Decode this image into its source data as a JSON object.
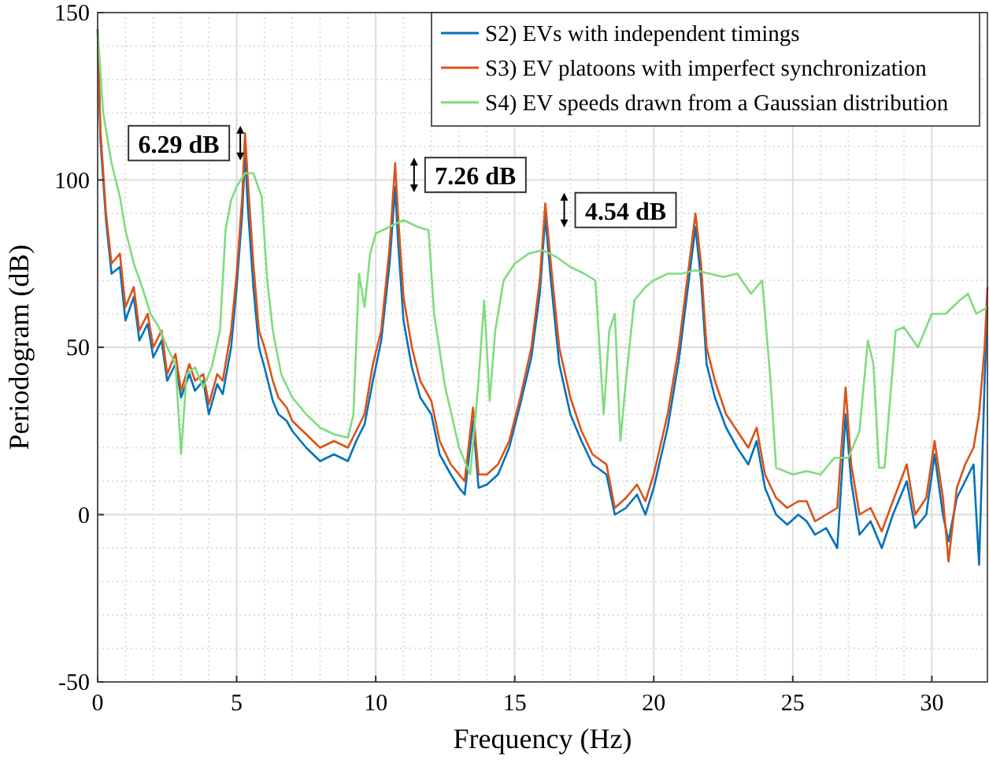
{
  "chart_data": {
    "type": "line",
    "xlabel": "Frequency (Hz)",
    "ylabel": "Periodogram (dB)",
    "xlim": [
      0,
      32
    ],
    "xticks": [
      0,
      5,
      10,
      15,
      20,
      25,
      30
    ],
    "ylim": [
      -50,
      150
    ],
    "yticks": [
      -50,
      0,
      50,
      100,
      150
    ],
    "grid": true,
    "legend": "top right",
    "line_style": "solid",
    "marker": "none",
    "x": [
      0,
      0.1,
      0.3,
      0.5,
      0.8,
      1.0,
      1.3,
      1.5,
      1.8,
      2.0,
      2.3,
      2.5,
      2.8,
      3.0,
      3.3,
      3.5,
      3.8,
      4.0,
      4.3,
      4.5,
      4.8,
      5.0,
      5.2,
      5.3,
      5.4,
      5.6,
      5.8,
      6.0,
      6.3,
      6.5,
      6.8,
      7.0,
      7.5,
      8.0,
      8.5,
      9.0,
      9.3,
      9.6,
      9.9,
      10.2,
      10.5,
      10.7,
      10.8,
      11.0,
      11.3,
      11.6,
      12.0,
      12.3,
      12.7,
      13.0,
      13.2,
      13.5,
      13.7,
      14.0,
      14.4,
      14.8,
      15.2,
      15.6,
      15.9,
      16.1,
      16.3,
      16.6,
      17.0,
      17.4,
      17.8,
      18.3,
      18.6,
      19.0,
      19.4,
      19.7,
      20.0,
      20.5,
      20.9,
      21.2,
      21.5,
      21.7,
      21.9,
      22.2,
      22.6,
      23.0,
      23.4,
      23.7,
      24.0,
      24.4,
      24.8,
      25.2,
      25.5,
      25.8,
      26.2,
      26.6,
      26.9,
      27.1,
      27.4,
      27.8,
      28.2,
      28.6,
      29.1,
      29.4,
      29.8,
      30.1,
      30.4,
      30.6,
      30.9,
      31.2,
      31.5,
      31.7,
      31.9,
      32.0
    ],
    "series": [
      {
        "name": "S2) EVs with independent timings",
        "color": "#0072bd",
        "values": [
          145,
          112,
          88,
          72,
          74,
          58,
          65,
          52,
          57,
          47,
          52,
          40,
          45,
          35,
          42,
          37,
          40,
          30,
          39,
          36,
          50,
          68,
          90,
          108,
          92,
          68,
          50,
          44,
          34,
          30,
          28,
          25,
          20,
          16,
          18,
          16,
          22,
          27,
          40,
          52,
          75,
          98,
          82,
          58,
          44,
          35,
          30,
          18,
          12,
          8,
          6,
          28,
          8,
          9,
          12,
          20,
          33,
          47,
          66,
          89,
          70,
          45,
          30,
          22,
          15,
          12,
          0,
          2,
          6,
          0,
          8,
          26,
          46,
          66,
          86,
          70,
          45,
          35,
          26,
          20,
          15,
          22,
          8,
          0,
          -3,
          0,
          -2,
          -6,
          -4,
          -10,
          30,
          10,
          -6,
          -2,
          -10,
          0,
          10,
          -4,
          0,
          18,
          0,
          -8,
          5,
          10,
          15,
          -15,
          40,
          62
        ]
      },
      {
        "name": "S3) EV platoons with imperfect synchronization",
        "color": "#d95319",
        "values": [
          145,
          115,
          90,
          75,
          78,
          62,
          68,
          55,
          60,
          50,
          55,
          42,
          48,
          37,
          45,
          40,
          42,
          33,
          42,
          40,
          55,
          72,
          95,
          114,
          100,
          75,
          55,
          50,
          40,
          35,
          32,
          28,
          24,
          20,
          22,
          20,
          25,
          30,
          45,
          55,
          80,
          105,
          90,
          65,
          50,
          40,
          34,
          22,
          15,
          12,
          10,
          32,
          12,
          12,
          15,
          22,
          35,
          50,
          70,
          93,
          75,
          50,
          35,
          25,
          18,
          15,
          2,
          5,
          9,
          4,
          12,
          30,
          50,
          70,
          90,
          75,
          50,
          40,
          30,
          25,
          20,
          26,
          12,
          5,
          2,
          4,
          4,
          -2,
          0,
          2,
          38,
          15,
          0,
          2,
          -5,
          4,
          15,
          0,
          5,
          22,
          5,
          -14,
          8,
          15,
          20,
          30,
          50,
          68
        ]
      },
      {
        "name": "S4) EV speeds drawn from a Gaussian distribution",
        "color": "#7fdc7f",
        "x": [
          0,
          0.2,
          0.5,
          0.8,
          1.0,
          1.3,
          1.6,
          1.9,
          2.2,
          2.5,
          2.8,
          3.0,
          3.2,
          3.5,
          3.8,
          4.1,
          4.4,
          4.6,
          4.8,
          5.0,
          5.3,
          5.6,
          5.9,
          6.1,
          6.3,
          6.6,
          7.0,
          7.5,
          8.0,
          8.5,
          9.0,
          9.2,
          9.4,
          9.6,
          9.8,
          10.0,
          10.5,
          11.0,
          11.5,
          11.9,
          12.1,
          12.5,
          13.0,
          13.4,
          13.7,
          13.9,
          14.1,
          14.3,
          14.6,
          15.0,
          15.5,
          16.0,
          16.5,
          17.0,
          17.5,
          17.9,
          18.2,
          18.4,
          18.6,
          18.8,
          19.0,
          19.3,
          19.7,
          20.0,
          20.5,
          21.0,
          21.5,
          22.0,
          22.5,
          23.0,
          23.5,
          23.9,
          24.2,
          24.4,
          25.0,
          25.5,
          26.0,
          26.5,
          27.0,
          27.4,
          27.7,
          27.9,
          28.1,
          28.3,
          28.7,
          29.0,
          29.5,
          30.0,
          30.5,
          31.0,
          31.3,
          31.6,
          32.0
        ],
        "values": [
          145,
          120,
          105,
          95,
          85,
          75,
          68,
          60,
          56,
          50,
          45,
          18,
          42,
          44,
          38,
          44,
          55,
          85,
          94,
          98,
          102,
          102,
          95,
          70,
          55,
          42,
          35,
          30,
          26,
          24,
          23,
          30,
          72,
          62,
          78,
          84,
          86,
          88,
          86,
          85,
          60,
          38,
          20,
          12,
          40,
          64,
          34,
          55,
          70,
          75,
          78,
          79,
          77,
          74,
          72,
          70,
          30,
          55,
          60,
          22,
          40,
          64,
          68,
          70,
          72,
          72,
          73,
          72,
          71,
          72,
          66,
          70,
          40,
          14,
          12,
          13,
          12,
          17,
          17,
          25,
          52,
          45,
          14,
          14,
          55,
          56,
          50,
          60,
          60,
          64,
          66,
          60,
          62
        ]
      }
    ],
    "annotations": [
      {
        "text": "6.29 dB",
        "x": 5.3,
        "y": 111
      },
      {
        "text": "7.26 dB",
        "x": 10.7,
        "y": 101.5
      },
      {
        "text": "4.54 dB",
        "x": 16.1,
        "y": 91
      }
    ]
  }
}
